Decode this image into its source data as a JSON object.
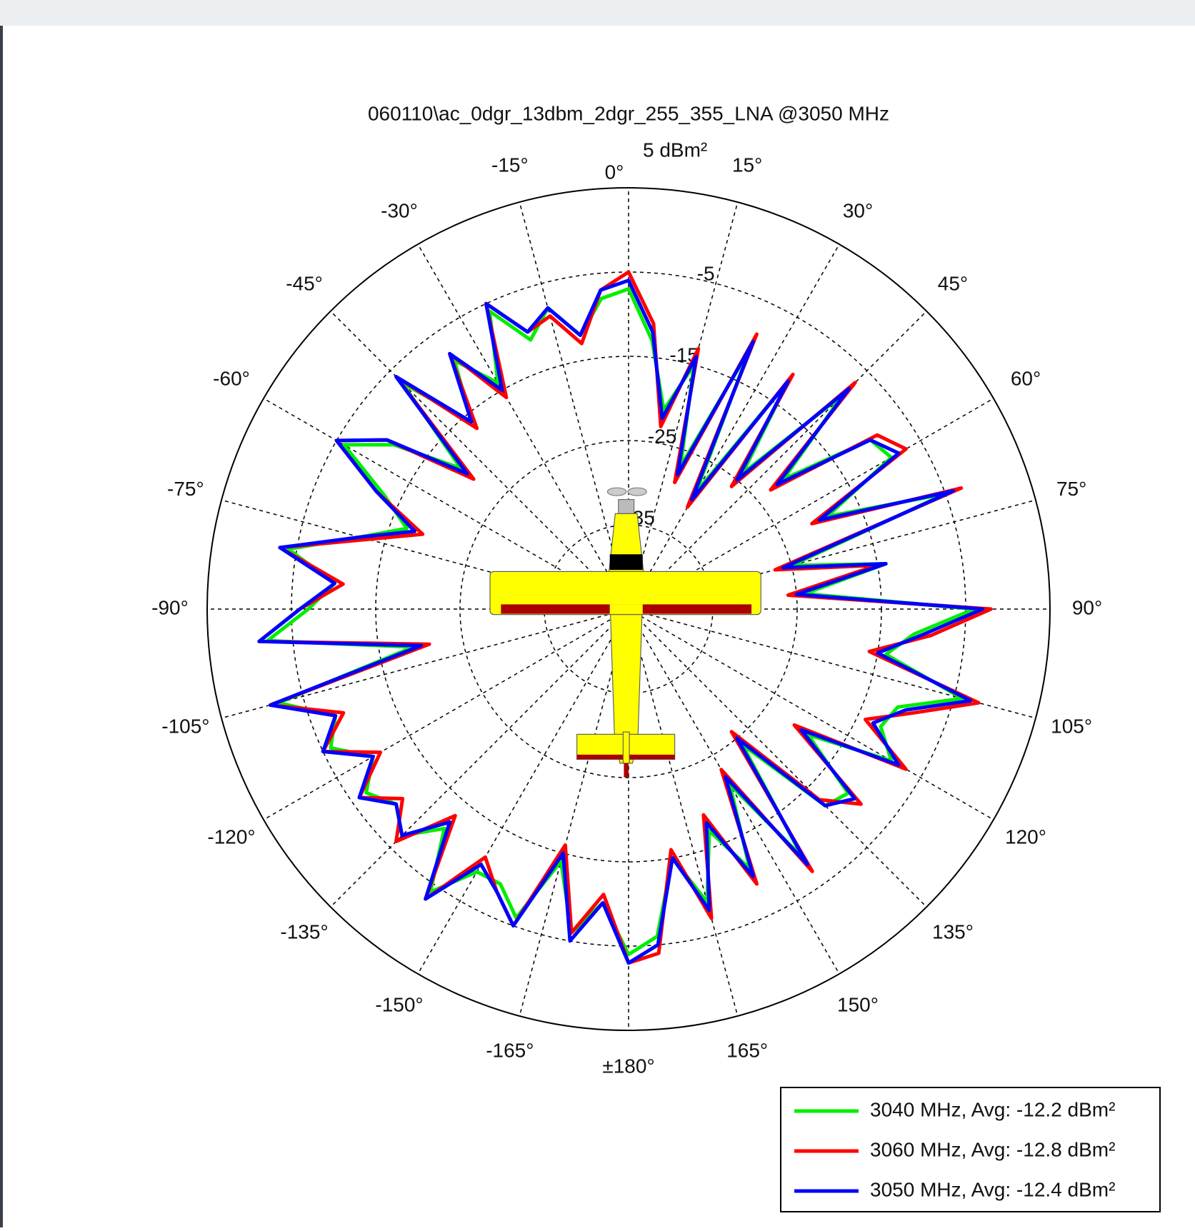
{
  "chart_data": {
    "type": "polar",
    "title": "060110\\ac_0dgr_13dbm_2dgr_255_355_LNA @3050 MHz",
    "rlim": [
      -45,
      5
    ],
    "rticks": [
      {
        "value": 5,
        "label": "5 dBm²"
      },
      -5,
      -15,
      -25,
      -35
    ],
    "thetaticks": [
      {
        "value": -165,
        "label": "-165°"
      },
      {
        "value": -150,
        "label": "-150°"
      },
      {
        "value": -135,
        "label": "-135°"
      },
      {
        "value": -120,
        "label": "-120°"
      },
      {
        "value": -105,
        "label": "-105°"
      },
      {
        "value": -90,
        "label": "-90°"
      },
      {
        "value": -75,
        "label": "-75°"
      },
      {
        "value": -60,
        "label": "-60°"
      },
      {
        "value": -45,
        "label": "-45°"
      },
      {
        "value": -30,
        "label": "-30°"
      },
      {
        "value": -15,
        "label": "-15°"
      },
      {
        "value": 0,
        "label": "0°"
      },
      {
        "value": 15,
        "label": "15°"
      },
      {
        "value": 30,
        "label": "30°"
      },
      {
        "value": 45,
        "label": "45°"
      },
      {
        "value": 60,
        "label": "60°"
      },
      {
        "value": 75,
        "label": "75°"
      },
      {
        "value": 90,
        "label": "90°"
      },
      {
        "value": 105,
        "label": "105°"
      },
      {
        "value": 120,
        "label": "120°"
      },
      {
        "value": 135,
        "label": "135°"
      },
      {
        "value": 150,
        "label": "150°"
      },
      {
        "value": 165,
        "label": "165°"
      },
      {
        "value": 180,
        "label": "±180°"
      }
    ],
    "grid": true,
    "legend": "lower right",
    "x": [
      -180,
      -175,
      -170,
      -165,
      -160,
      -155,
      -150,
      -145,
      -140,
      -135,
      -130,
      -125,
      -120,
      -115,
      -110,
      -105,
      -100,
      -95,
      -90,
      -85,
      -80,
      -75,
      -70,
      -65,
      -60,
      -55,
      -50,
      -45,
      -40,
      -35,
      -30,
      -25,
      -20,
      -15,
      -10,
      -5,
      0,
      5,
      10,
      15,
      20,
      25,
      30,
      35,
      40,
      45,
      50,
      55,
      60,
      65,
      70,
      75,
      80,
      85,
      90,
      95,
      100,
      105,
      110,
      115,
      120,
      125,
      130,
      135,
      140,
      145,
      150,
      155,
      160,
      165,
      170,
      175
    ],
    "series": [
      {
        "name": "3040 MHz, Avg: -12.2 dBm²",
        "color": "#00ee00",
        "values": [
          -4,
          -10,
          -6,
          -14,
          -6,
          -9,
          -9,
          -4,
          -11,
          -7,
          -9,
          -7,
          -10,
          -6,
          -8,
          -2,
          -19,
          -2,
          -7,
          -10,
          -4,
          -12,
          -17,
          -13,
          -6,
          -11,
          -19,
          -7,
          -16,
          -9,
          -14,
          -6,
          -11,
          -8,
          -12,
          -8,
          -7,
          -13,
          -21,
          -15,
          -27,
          -11,
          -29,
          -12,
          -24,
          -9,
          -21,
          -10,
          -9,
          -19,
          -5,
          -25,
          -14,
          -24,
          -4,
          -11,
          -14,
          -4,
          -11,
          -12,
          -9,
          -19,
          -11,
          -12,
          -24,
          -9,
          -21,
          -11,
          -17,
          -9,
          -15,
          -6
        ]
      },
      {
        "name": "3060 MHz, Avg: -12.8 dBm²",
        "color": "#ff0000",
        "values": [
          -3,
          -11,
          -6,
          -16,
          -5,
          -8,
          -11,
          -3,
          -13,
          -6,
          -10,
          -6,
          -11,
          -5,
          -9,
          -1,
          -21,
          -1,
          -6,
          -11,
          -3,
          -13,
          -19,
          -12,
          -5,
          -10,
          -21,
          -6,
          -17,
          -8,
          -16,
          -5,
          -10,
          -9,
          -13,
          -7,
          -5,
          -11,
          -23,
          -13,
          -29,
          -9,
          -31,
          -11,
          -26,
          -7,
          -23,
          -9,
          -7,
          -21,
          -3,
          -27,
          -15,
          -26,
          -2,
          -9,
          -16,
          -2,
          -9,
          -14,
          -7,
          -21,
          -9,
          -13,
          -26,
          -7,
          -23,
          -9,
          -19,
          -7,
          -16,
          -4
        ]
      },
      {
        "name": "3050 MHz, Avg: -12.4 dBm²",
        "color": "#0000ff",
        "values": [
          -3,
          -10,
          -5,
          -15,
          -5,
          -8,
          -10,
          -3,
          -12,
          -7,
          -9,
          -6,
          -10,
          -5,
          -8,
          -1,
          -20,
          -1,
          -6,
          -10,
          -3,
          -12,
          -18,
          -12,
          -5,
          -10,
          -20,
          -6,
          -16,
          -8,
          -15,
          -5,
          -10,
          -8,
          -12,
          -7,
          -6,
          -12,
          -22,
          -14,
          -28,
          -10,
          -30,
          -12,
          -25,
          -8,
          -22,
          -10,
          -8,
          -20,
          -4,
          -26,
          -14,
          -25,
          -3,
          -10,
          -15,
          -3,
          -10,
          -13,
          -8,
          -20,
          -10,
          -12,
          -25,
          -8,
          -22,
          -10,
          -18,
          -8,
          -15,
          -5
        ]
      }
    ]
  }
}
